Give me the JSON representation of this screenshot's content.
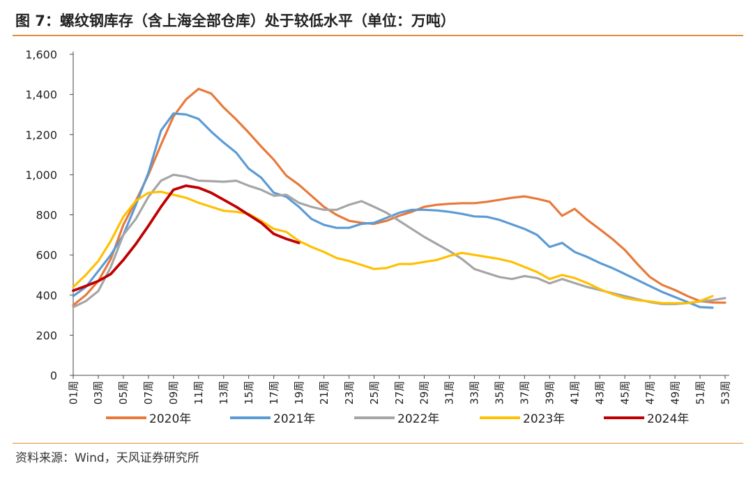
{
  "page": {
    "title": "图 7：螺纹钢库存（含上海全部仓库）处于较低水平（单位：万吨）",
    "source": "资料来源：Wind，天风证券研究所"
  },
  "colors": {
    "accent_rule": "#e38b3b"
  },
  "chart_data": {
    "type": "line",
    "title": "",
    "xlabel": "",
    "ylabel": "",
    "ylim": [
      0,
      1600
    ],
    "yticks": [
      0,
      200,
      400,
      600,
      800,
      1000,
      1200,
      1400,
      1600
    ],
    "ytick_labels": [
      "0",
      "200",
      "400",
      "600",
      "800",
      "1,000",
      "1,200",
      "1,400",
      "1,600"
    ],
    "xlim": [
      1,
      53
    ],
    "xticks": [
      1,
      3,
      5,
      7,
      9,
      11,
      13,
      15,
      17,
      19,
      21,
      23,
      25,
      27,
      29,
      31,
      33,
      35,
      37,
      39,
      41,
      43,
      45,
      47,
      49,
      51,
      53
    ],
    "xtick_labels": [
      "01周",
      "03周",
      "05周",
      "07周",
      "09周",
      "11周",
      "13周",
      "15周",
      "17周",
      "19周",
      "21周",
      "23周",
      "25周",
      "27周",
      "29周",
      "31周",
      "33周",
      "35周",
      "37周",
      "39周",
      "41周",
      "43周",
      "45周",
      "47周",
      "49周",
      "51周",
      "53周"
    ],
    "grid": false,
    "legend": "bottom",
    "series": [
      {
        "name": "2020年",
        "color": "#e8793a",
        "width": 3.2,
        "x": [
          1,
          2,
          3,
          4,
          5,
          6,
          7,
          8,
          9,
          10,
          11,
          12,
          13,
          14,
          15,
          16,
          17,
          18,
          19,
          20,
          21,
          22,
          23,
          24,
          25,
          26,
          27,
          28,
          29,
          30,
          31,
          32,
          33,
          34,
          35,
          36,
          37,
          38,
          39,
          40,
          41,
          42,
          43,
          44,
          45,
          46,
          47,
          48,
          49,
          50,
          51,
          52,
          53
        ],
        "y": [
          350,
          400,
          470,
          580,
          750,
          870,
          1000,
          1150,
          1290,
          1375,
          1428,
          1405,
          1335,
          1275,
          1210,
          1140,
          1075,
          995,
          950,
          895,
          840,
          800,
          770,
          760,
          755,
          770,
          795,
          815,
          840,
          850,
          855,
          858,
          858,
          865,
          875,
          885,
          892,
          880,
          865,
          795,
          830,
          775,
          728,
          680,
          625,
          555,
          490,
          450,
          425,
          395,
          370,
          363,
          362
        ]
      },
      {
        "name": "2021年",
        "color": "#5b9bd5",
        "width": 3.2,
        "x": [
          1,
          2,
          3,
          4,
          5,
          6,
          7,
          8,
          9,
          10,
          11,
          12,
          13,
          14,
          15,
          16,
          17,
          18,
          19,
          20,
          21,
          22,
          23,
          24,
          25,
          26,
          27,
          28,
          29,
          30,
          31,
          32,
          33,
          34,
          35,
          36,
          37,
          38,
          39,
          40,
          41,
          42,
          43,
          44,
          45,
          46,
          47,
          48,
          49,
          50,
          51,
          52
        ],
        "y": [
          395,
          440,
          520,
          600,
          700,
          850,
          1010,
          1220,
          1305,
          1300,
          1278,
          1215,
          1160,
          1110,
          1030,
          985,
          910,
          890,
          840,
          780,
          750,
          735,
          735,
          755,
          760,
          785,
          810,
          825,
          825,
          822,
          815,
          805,
          792,
          790,
          775,
          752,
          730,
          700,
          640,
          660,
          615,
          590,
          560,
          535,
          505,
          475,
          445,
          415,
          390,
          365,
          340,
          337
        ]
      },
      {
        "name": "2022年",
        "color": "#a5a5a5",
        "width": 3.2,
        "x": [
          1,
          2,
          3,
          4,
          5,
          6,
          7,
          8,
          9,
          10,
          11,
          12,
          13,
          14,
          15,
          16,
          17,
          18,
          19,
          20,
          21,
          22,
          23,
          24,
          25,
          26,
          27,
          28,
          29,
          30,
          31,
          32,
          33,
          34,
          35,
          36,
          37,
          38,
          39,
          40,
          41,
          42,
          43,
          44,
          45,
          46,
          47,
          48,
          49,
          50,
          51,
          52,
          53
        ],
        "y": [
          340,
          370,
          420,
          540,
          700,
          780,
          890,
          970,
          1000,
          990,
          970,
          968,
          965,
          970,
          945,
          925,
          895,
          900,
          860,
          840,
          825,
          825,
          850,
          868,
          840,
          810,
          770,
          730,
          690,
          655,
          620,
          580,
          530,
          510,
          490,
          480,
          495,
          485,
          458,
          480,
          460,
          440,
          425,
          410,
          395,
          380,
          365,
          355,
          355,
          360,
          368,
          375,
          385
        ]
      },
      {
        "name": "2023年",
        "color": "#ffc000",
        "width": 3.2,
        "x": [
          1,
          2,
          3,
          4,
          5,
          6,
          7,
          8,
          9,
          10,
          11,
          12,
          13,
          14,
          15,
          16,
          17,
          18,
          19,
          20,
          21,
          22,
          23,
          24,
          25,
          26,
          27,
          28,
          29,
          30,
          31,
          32,
          33,
          34,
          35,
          36,
          37,
          38,
          39,
          40,
          41,
          42,
          43,
          44,
          45,
          46,
          47,
          48,
          49,
          50,
          51,
          52
        ],
        "y": [
          440,
          500,
          570,
          670,
          790,
          870,
          910,
          915,
          900,
          885,
          860,
          840,
          820,
          815,
          805,
          770,
          730,
          715,
          670,
          640,
          615,
          585,
          570,
          550,
          530,
          535,
          555,
          555,
          565,
          575,
          595,
          610,
          600,
          590,
          580,
          565,
          540,
          515,
          480,
          500,
          485,
          460,
          430,
          405,
          385,
          375,
          368,
          360,
          360,
          360,
          370,
          395
        ]
      },
      {
        "name": "2024年",
        "color": "#c00000",
        "width": 3.8,
        "x": [
          1,
          2,
          3,
          4,
          5,
          6,
          7,
          8,
          9,
          10,
          11,
          12,
          13,
          14,
          15,
          16,
          17,
          18,
          19
        ],
        "y": [
          422,
          445,
          470,
          505,
          575,
          655,
          745,
          840,
          925,
          945,
          935,
          910,
          875,
          840,
          800,
          760,
          705,
          680,
          660
        ]
      }
    ]
  }
}
